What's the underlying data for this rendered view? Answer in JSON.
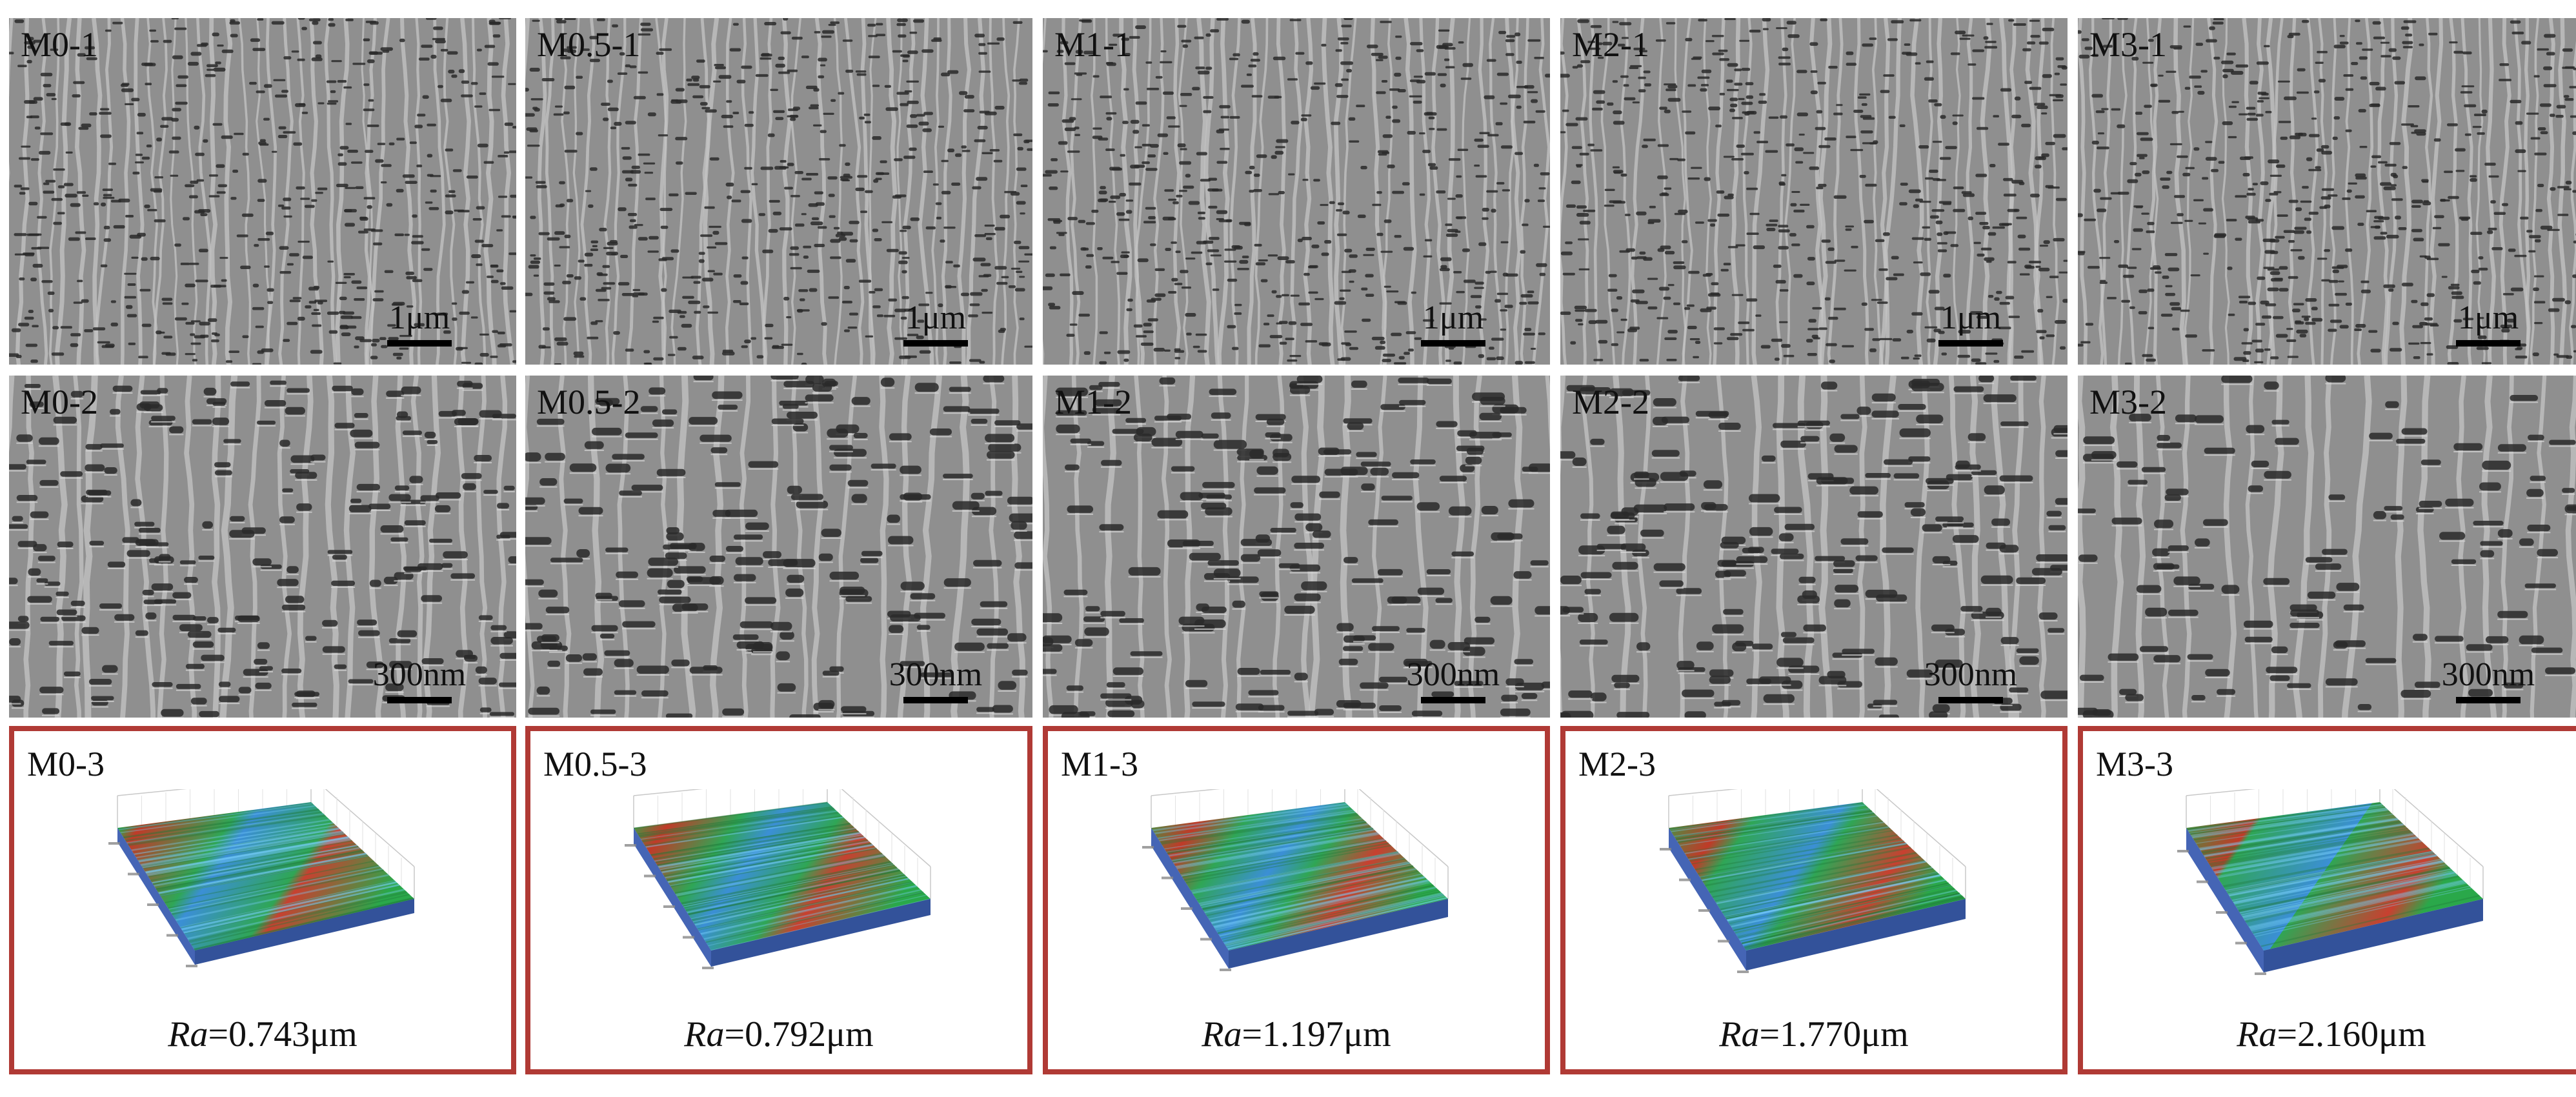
{
  "colors": {
    "sem_bg": "#8f8f8f",
    "sem_ridge": "#c4c4c4",
    "pore": "#2a2a2a",
    "frame": "#b03a35"
  },
  "columns": [
    {
      "id": "m0",
      "row1": {
        "label": "M0-1",
        "scale": "1μm"
      },
      "row2": {
        "label": "M0-2",
        "scale": "300nm"
      },
      "row3": {
        "label": "M0-3",
        "ra_symbol": "Ra",
        "ra_value": "=0.743μm"
      }
    },
    {
      "id": "m05",
      "row1": {
        "label": "M0.5-1",
        "scale": "1μm"
      },
      "row2": {
        "label": "M0.5-2",
        "scale": "300nm"
      },
      "row3": {
        "label": "M0.5-3",
        "ra_symbol": "Ra",
        "ra_value": "=0.792μm"
      }
    },
    {
      "id": "m1",
      "row1": {
        "label": "M1-1",
        "scale": "1μm"
      },
      "row2": {
        "label": "M1-2",
        "scale": "300nm"
      },
      "row3": {
        "label": "M1-3",
        "ra_symbol": "Ra",
        "ra_value": "=1.197μm"
      }
    },
    {
      "id": "m2",
      "row1": {
        "label": "M2-1",
        "scale": "1μm"
      },
      "row2": {
        "label": "M2-2",
        "scale": "300nm"
      },
      "row3": {
        "label": "M2-3",
        "ra_symbol": "Ra",
        "ra_value": "=1.770μm"
      }
    },
    {
      "id": "m3",
      "row1": {
        "label": "M3-1",
        "scale": "1μm"
      },
      "row2": {
        "label": "M3-2",
        "scale": "300nm"
      },
      "row3": {
        "label": "M3-3",
        "ra_symbol": "Ra",
        "ra_value": "=2.160μm"
      }
    }
  ]
}
